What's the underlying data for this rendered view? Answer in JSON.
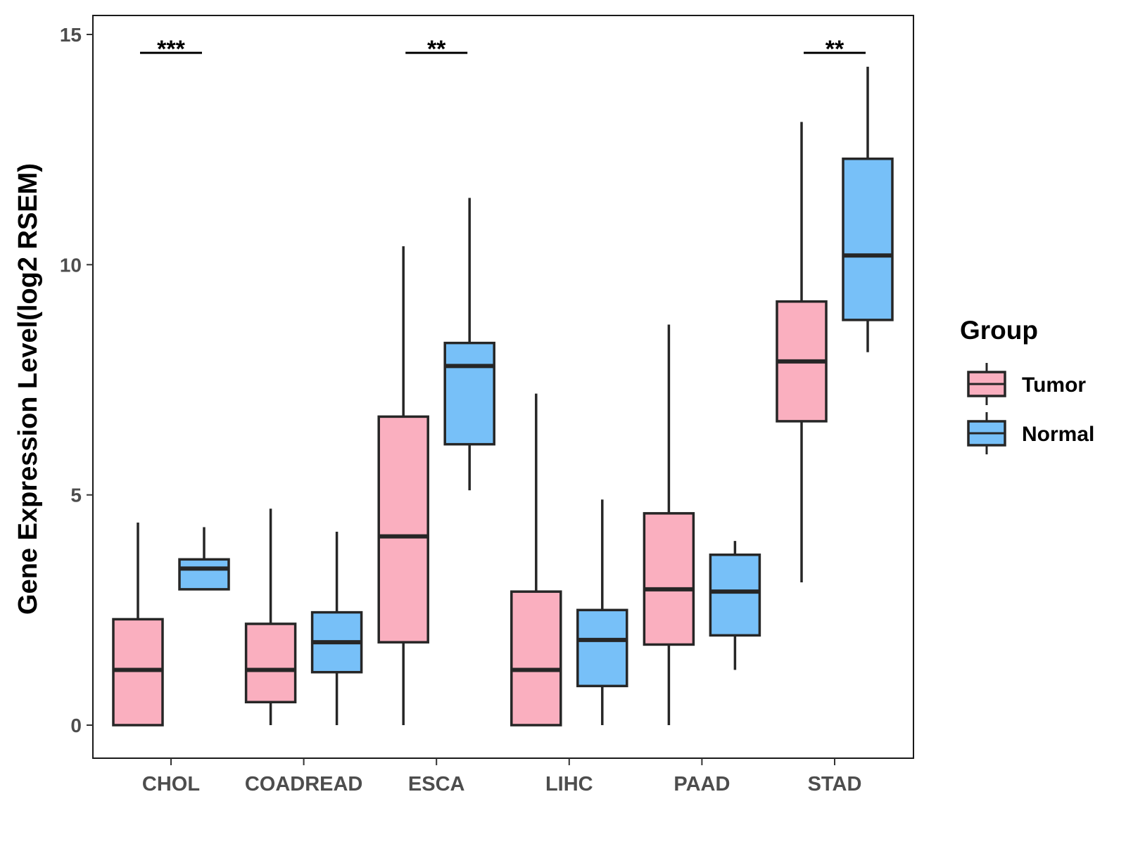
{
  "chart_data": {
    "type": "boxplot",
    "title": "",
    "xlabel": "",
    "ylabel": "Gene Expression Level(log2 RSEM)",
    "ylim": [
      -0.7,
      15.4
    ],
    "yticks": [
      0,
      5,
      10,
      15
    ],
    "categories": [
      "CHOL",
      "COADREAD",
      "ESCA",
      "LIHC",
      "PAAD",
      "STAD"
    ],
    "legend": {
      "title": "Group",
      "position": "right",
      "items": [
        {
          "label": "Tumor",
          "color": "#FAAFBF"
        },
        {
          "label": "Normal",
          "color": "#77C0F8"
        }
      ]
    },
    "series": [
      {
        "name": "Tumor",
        "color": "#FAAFBF",
        "boxes": [
          {
            "min": 0.0,
            "q1": 0.0,
            "median": 1.2,
            "q3": 2.3,
            "max": 4.4
          },
          {
            "min": 0.0,
            "q1": 0.5,
            "median": 1.2,
            "q3": 2.2,
            "max": 4.7
          },
          {
            "min": 0.0,
            "q1": 1.8,
            "median": 4.1,
            "q3": 6.7,
            "max": 10.4
          },
          {
            "min": 0.0,
            "q1": 0.0,
            "median": 1.2,
            "q3": 2.9,
            "max": 7.2
          },
          {
            "min": 0.0,
            "q1": 1.75,
            "median": 2.95,
            "q3": 4.6,
            "max": 8.7
          },
          {
            "min": 3.1,
            "q1": 6.6,
            "median": 7.9,
            "q3": 9.2,
            "max": 13.1
          }
        ]
      },
      {
        "name": "Normal",
        "color": "#77C0F8",
        "boxes": [
          {
            "min": 2.95,
            "q1": 2.95,
            "median": 3.4,
            "q3": 3.6,
            "max": 4.3
          },
          {
            "min": 0.0,
            "q1": 1.15,
            "median": 1.8,
            "q3": 2.45,
            "max": 4.2
          },
          {
            "min": 5.1,
            "q1": 6.1,
            "median": 7.8,
            "q3": 8.3,
            "max": 11.45
          },
          {
            "min": 0.0,
            "q1": 0.85,
            "median": 1.85,
            "q3": 2.5,
            "max": 4.9
          },
          {
            "min": 1.2,
            "q1": 1.95,
            "median": 2.9,
            "q3": 3.7,
            "max": 4.0
          },
          {
            "min": 8.1,
            "q1": 8.8,
            "median": 10.2,
            "q3": 12.3,
            "max": 14.3
          }
        ]
      }
    ],
    "significance": [
      {
        "category": "CHOL",
        "label": "***",
        "y": 14.6
      },
      {
        "category": "ESCA",
        "label": "**",
        "y": 14.6
      },
      {
        "category": "STAD",
        "label": "**",
        "y": 14.6
      }
    ]
  }
}
